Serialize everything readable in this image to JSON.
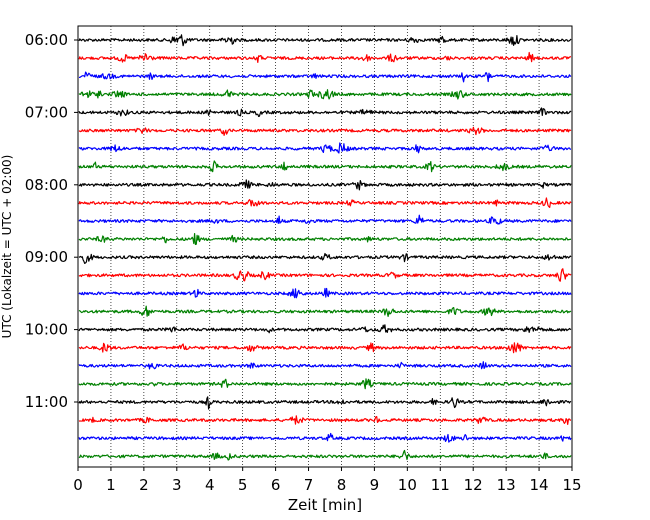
{
  "chart_data": {
    "type": "line",
    "title": "",
    "xlabel": "Zeit  [min]",
    "ylabel": "UTC (Lokalzeit = UTC + 02:00)",
    "xlim": [
      0,
      15
    ],
    "x_ticks": [
      "0",
      "1",
      "2",
      "3",
      "4",
      "5",
      "6",
      "7",
      "8",
      "9",
      "10",
      "11",
      "12",
      "13",
      "14",
      "15"
    ],
    "y_ticks": [
      "06:00",
      "07:00",
      "08:00",
      "09:00",
      "10:00",
      "11:00"
    ],
    "grid": "vertical dotted at each minute",
    "trace_interval_min": 15,
    "trace_colors": [
      "#000000",
      "#ff0000",
      "#0000ff",
      "#008000"
    ],
    "series": [
      {
        "start": "06:00",
        "color": "#000000"
      },
      {
        "start": "06:15",
        "color": "#ff0000"
      },
      {
        "start": "06:30",
        "color": "#0000ff"
      },
      {
        "start": "06:45",
        "color": "#008000"
      },
      {
        "start": "07:00",
        "color": "#000000"
      },
      {
        "start": "07:15",
        "color": "#ff0000"
      },
      {
        "start": "07:30",
        "color": "#0000ff"
      },
      {
        "start": "07:45",
        "color": "#008000"
      },
      {
        "start": "08:00",
        "color": "#000000"
      },
      {
        "start": "08:15",
        "color": "#ff0000"
      },
      {
        "start": "08:30",
        "color": "#0000ff"
      },
      {
        "start": "08:45",
        "color": "#008000"
      },
      {
        "start": "09:00",
        "color": "#000000"
      },
      {
        "start": "09:15",
        "color": "#ff0000"
      },
      {
        "start": "09:30",
        "color": "#0000ff"
      },
      {
        "start": "09:45",
        "color": "#008000"
      },
      {
        "start": "10:00",
        "color": "#000000"
      },
      {
        "start": "10:15",
        "color": "#ff0000"
      },
      {
        "start": "10:30",
        "color": "#0000ff"
      },
      {
        "start": "10:45",
        "color": "#008000"
      },
      {
        "start": "11:00",
        "color": "#000000"
      },
      {
        "start": "11:15",
        "color": "#ff0000"
      },
      {
        "start": "11:30",
        "color": "#0000ff"
      },
      {
        "start": "11:45",
        "color": "#008000"
      }
    ]
  }
}
